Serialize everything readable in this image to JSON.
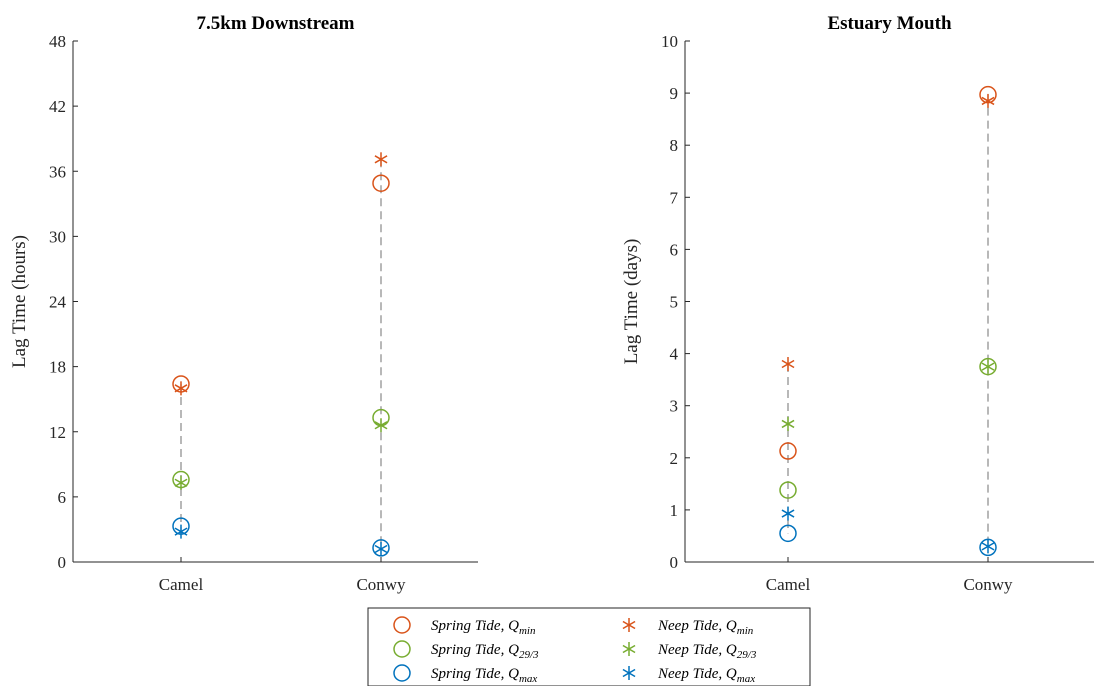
{
  "colors": {
    "min": "#D95319",
    "mid": "#77AC30",
    "max": "#0072BD",
    "axis": "#262626",
    "connector": "#888888"
  },
  "legend": {
    "placement": "bottom-center",
    "entries": [
      {
        "marker": "circle",
        "color_key": "min",
        "main": "Spring Tide, ",
        "q": "Q",
        "sub": "min"
      },
      {
        "marker": "asterisk",
        "color_key": "min",
        "main": "Neep Tide, ",
        "q": "Q",
        "sub": "min"
      },
      {
        "marker": "circle",
        "color_key": "mid",
        "main": "Spring Tide, ",
        "q": "Q",
        "sub": "29/3"
      },
      {
        "marker": "asterisk",
        "color_key": "mid",
        "main": "Neep Tide, ",
        "q": "Q",
        "sub": "29/3"
      },
      {
        "marker": "circle",
        "color_key": "max",
        "main": "Spring Tide, ",
        "q": "Q",
        "sub": "max"
      },
      {
        "marker": "asterisk",
        "color_key": "max",
        "main": "Neep Tide, ",
        "q": "Q",
        "sub": "max"
      }
    ]
  },
  "chart_data": [
    {
      "type": "scatter",
      "title": "7.5km Downstream",
      "ylabel": "Lag Time (hours)",
      "xlabel": "",
      "categories": [
        "Camel",
        "Conwy"
      ],
      "ylim": [
        0,
        48
      ],
      "yticks": [
        0,
        6,
        12,
        18,
        24,
        30,
        36,
        42,
        48
      ],
      "grid": false,
      "series": [
        {
          "name": "Spring Tide, Q_min",
          "marker": "circle",
          "color_key": "min",
          "values": [
            16.4,
            34.9
          ]
        },
        {
          "name": "Neep Tide, Q_min",
          "marker": "asterisk",
          "color_key": "min",
          "values": [
            16.0,
            37.1
          ]
        },
        {
          "name": "Spring Tide, Q_29/3",
          "marker": "circle",
          "color_key": "mid",
          "values": [
            7.6,
            13.3
          ]
        },
        {
          "name": "Neep Tide, Q_29/3",
          "marker": "asterisk",
          "color_key": "mid",
          "values": [
            7.3,
            12.6
          ]
        },
        {
          "name": "Spring Tide, Q_max",
          "marker": "circle",
          "color_key": "max",
          "values": [
            3.3,
            1.3
          ]
        },
        {
          "name": "Neep Tide, Q_max",
          "marker": "asterisk",
          "color_key": "max",
          "values": [
            2.8,
            1.2
          ]
        }
      ]
    },
    {
      "type": "scatter",
      "title": "Estuary Mouth",
      "ylabel": "Lag Time (days)",
      "xlabel": "",
      "categories": [
        "Camel",
        "Conwy"
      ],
      "ylim": [
        0,
        10
      ],
      "yticks": [
        0,
        1,
        2,
        3,
        4,
        5,
        6,
        7,
        8,
        9,
        10
      ],
      "grid": false,
      "series": [
        {
          "name": "Spring Tide, Q_min",
          "marker": "circle",
          "color_key": "min",
          "values": [
            2.13,
            8.97
          ]
        },
        {
          "name": "Neep Tide, Q_min",
          "marker": "asterisk",
          "color_key": "min",
          "values": [
            3.8,
            8.85
          ]
        },
        {
          "name": "Spring Tide, Q_29/3",
          "marker": "circle",
          "color_key": "mid",
          "values": [
            1.38,
            3.75
          ]
        },
        {
          "name": "Neep Tide, Q_29/3",
          "marker": "asterisk",
          "color_key": "mid",
          "values": [
            2.65,
            3.75
          ]
        },
        {
          "name": "Spring Tide, Q_max",
          "marker": "circle",
          "color_key": "max",
          "values": [
            0.55,
            0.28
          ]
        },
        {
          "name": "Neep Tide, Q_max",
          "marker": "asterisk",
          "color_key": "max",
          "values": [
            0.93,
            0.3
          ]
        }
      ]
    }
  ]
}
